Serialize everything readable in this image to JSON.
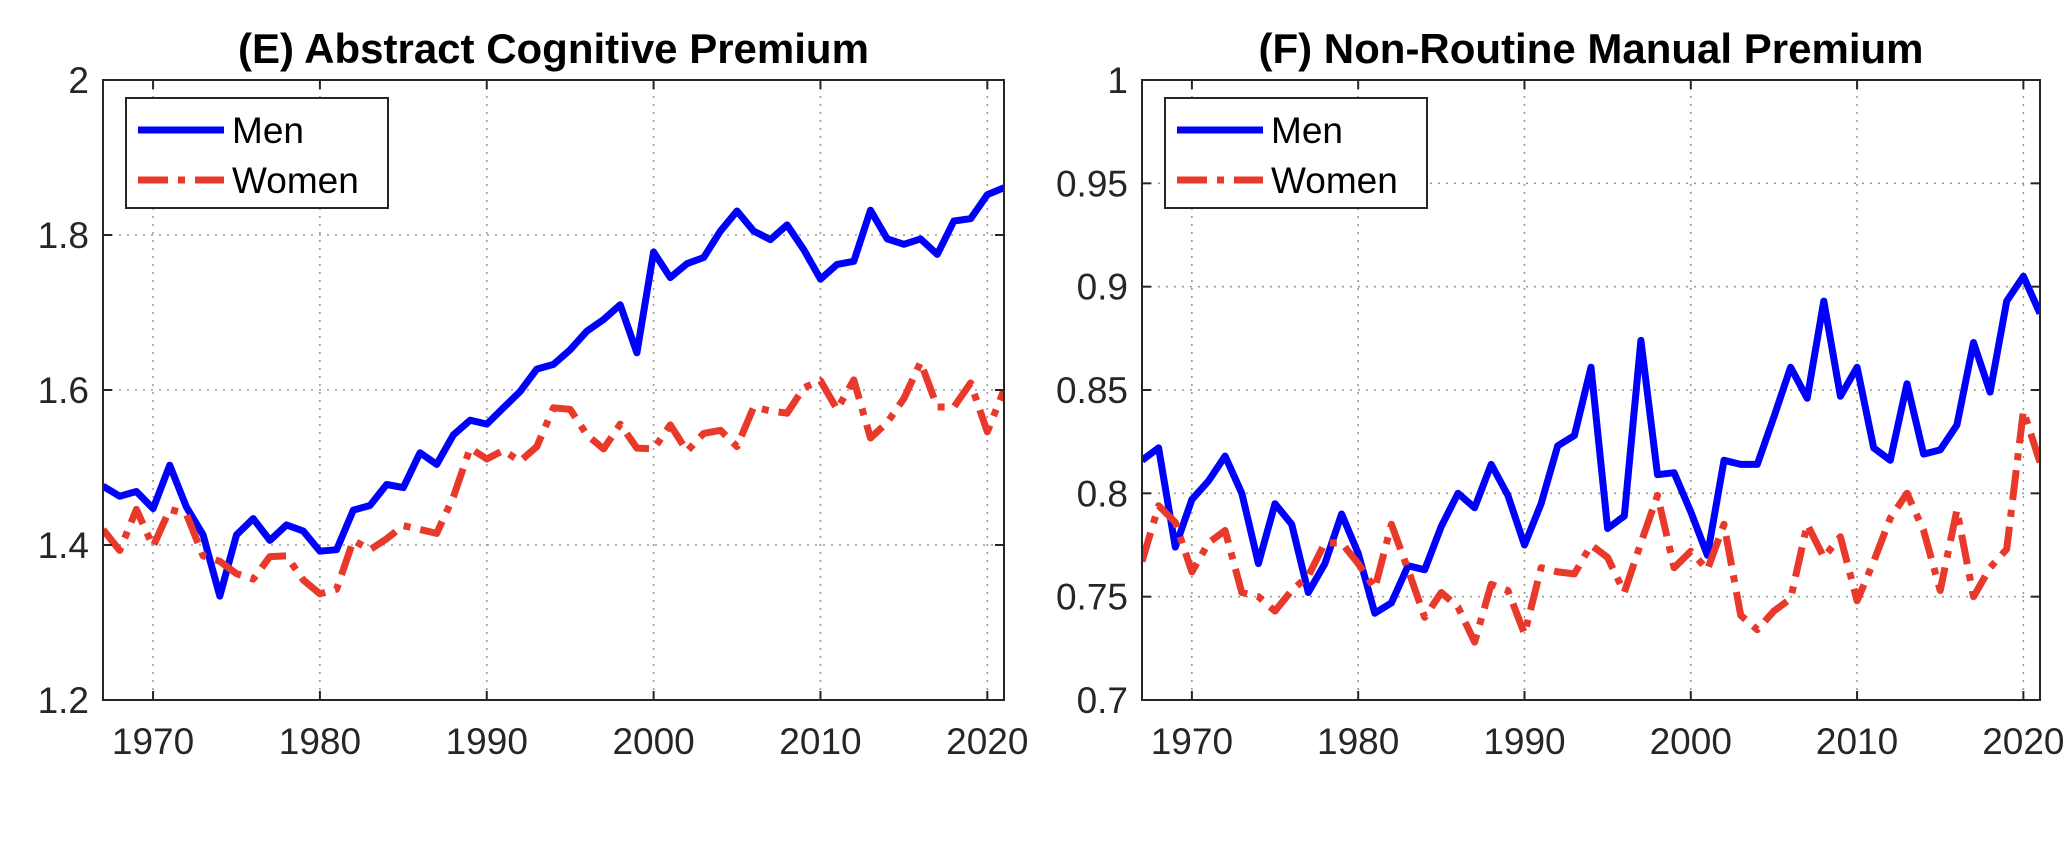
{
  "chart_data": [
    {
      "type": "line",
      "title": "(E) Abstract Cognitive Premium",
      "xlabel": "",
      "ylabel": "",
      "xlim": [
        1967,
        2021
      ],
      "ylim": [
        1.2,
        2.0
      ],
      "xticks": [
        1970,
        1980,
        1990,
        2000,
        2010,
        2020
      ],
      "xtick_labels": [
        "1970",
        "1980",
        "1990",
        "2000",
        "2010",
        "2020"
      ],
      "yticks": [
        1.2,
        1.4,
        1.6,
        1.8,
        2.0
      ],
      "ytick_labels": [
        "1.2",
        "1.4",
        "1.6",
        "1.8",
        "2"
      ],
      "grid": true,
      "legend_position": "top-left",
      "x": [
        1967,
        1968,
        1969,
        1970,
        1971,
        1972,
        1973,
        1974,
        1975,
        1976,
        1977,
        1978,
        1979,
        1980,
        1981,
        1982,
        1983,
        1984,
        1985,
        1986,
        1987,
        1988,
        1989,
        1990,
        1991,
        1992,
        1993,
        1994,
        1995,
        1996,
        1997,
        1998,
        1999,
        2000,
        2001,
        2002,
        2003,
        2004,
        2005,
        2006,
        2007,
        2008,
        2009,
        2010,
        2011,
        2012,
        2013,
        2014,
        2015,
        2016,
        2017,
        2018,
        2019,
        2020,
        2021
      ],
      "series": [
        {
          "name": "Men",
          "color": "#0000ff",
          "style": "solid",
          "values": [
            1.476,
            1.463,
            1.469,
            1.447,
            1.503,
            1.449,
            1.413,
            1.334,
            1.413,
            1.434,
            1.406,
            1.426,
            1.418,
            1.392,
            1.394,
            1.445,
            1.451,
            1.478,
            1.474,
            1.519,
            1.504,
            1.542,
            1.561,
            1.556,
            1.577,
            1.598,
            1.627,
            1.633,
            1.652,
            1.676,
            1.691,
            1.71,
            1.648,
            1.778,
            1.745,
            1.763,
            1.771,
            1.805,
            1.831,
            1.805,
            1.794,
            1.813,
            1.781,
            1.743,
            1.762,
            1.766,
            1.832,
            1.795,
            1.788,
            1.795,
            1.775,
            1.818,
            1.821,
            1.852,
            1.861
          ]
        },
        {
          "name": "Women",
          "color": "#e8392b",
          "style": "dashdot",
          "values": [
            1.42,
            1.393,
            1.446,
            1.398,
            1.446,
            1.44,
            1.386,
            1.379,
            1.363,
            1.356,
            1.385,
            1.386,
            1.355,
            1.337,
            1.343,
            1.406,
            1.394,
            1.408,
            1.425,
            1.42,
            1.415,
            1.462,
            1.525,
            1.511,
            1.522,
            1.508,
            1.527,
            1.577,
            1.575,
            1.542,
            1.524,
            1.556,
            1.525,
            1.524,
            1.555,
            1.521,
            1.544,
            1.548,
            1.527,
            1.578,
            1.573,
            1.57,
            1.603,
            1.612,
            1.575,
            1.613,
            1.538,
            1.558,
            1.589,
            1.636,
            1.578,
            1.578,
            1.609,
            1.546,
            1.6
          ]
        }
      ]
    },
    {
      "type": "line",
      "title": "(F) Non-Routine Manual Premium",
      "xlabel": "",
      "ylabel": "",
      "xlim": [
        1967,
        2021
      ],
      "ylim": [
        0.7,
        1.0
      ],
      "xticks": [
        1970,
        1980,
        1990,
        2000,
        2010,
        2020
      ],
      "xtick_labels": [
        "1970",
        "1980",
        "1990",
        "2000",
        "2010",
        "2020"
      ],
      "yticks": [
        0.7,
        0.75,
        0.8,
        0.85,
        0.9,
        0.95,
        1.0
      ],
      "ytick_labels": [
        "0.7",
        "0.75",
        "0.8",
        "0.85",
        "0.9",
        "0.95",
        "1"
      ],
      "grid": true,
      "legend_position": "top-left",
      "x": [
        1967,
        1968,
        1969,
        1970,
        1971,
        1972,
        1973,
        1974,
        1975,
        1976,
        1977,
        1978,
        1979,
        1980,
        1981,
        1982,
        1983,
        1984,
        1985,
        1986,
        1987,
        1988,
        1989,
        1990,
        1991,
        1992,
        1993,
        1994,
        1995,
        1996,
        1997,
        1998,
        1999,
        2000,
        2001,
        2002,
        2003,
        2004,
        2005,
        2006,
        2007,
        2008,
        2009,
        2010,
        2011,
        2012,
        2013,
        2014,
        2015,
        2016,
        2017,
        2018,
        2019,
        2020,
        2021
      ],
      "series": [
        {
          "name": "Men",
          "color": "#0000ff",
          "style": "solid",
          "values": [
            0.816,
            0.822,
            0.774,
            0.797,
            0.806,
            0.818,
            0.8,
            0.766,
            0.795,
            0.785,
            0.752,
            0.766,
            0.79,
            0.771,
            0.742,
            0.747,
            0.765,
            0.763,
            0.784,
            0.8,
            0.793,
            0.814,
            0.799,
            0.775,
            0.795,
            0.823,
            0.828,
            0.861,
            0.783,
            0.789,
            0.874,
            0.809,
            0.81,
            0.791,
            0.77,
            0.816,
            0.814,
            0.814,
            0.837,
            0.861,
            0.846,
            0.893,
            0.847,
            0.861,
            0.822,
            0.816,
            0.853,
            0.819,
            0.821,
            0.833,
            0.873,
            0.849,
            0.893,
            0.905,
            0.887
          ]
        },
        {
          "name": "Women",
          "color": "#e8392b",
          "style": "dashdot",
          "values": [
            0.767,
            0.794,
            0.786,
            0.762,
            0.776,
            0.782,
            0.752,
            0.75,
            0.743,
            0.753,
            0.76,
            0.776,
            0.776,
            0.766,
            0.754,
            0.785,
            0.763,
            0.74,
            0.752,
            0.745,
            0.728,
            0.756,
            0.753,
            0.732,
            0.764,
            0.762,
            0.761,
            0.775,
            0.769,
            0.752,
            0.776,
            0.799,
            0.764,
            0.772,
            0.763,
            0.785,
            0.741,
            0.734,
            0.743,
            0.749,
            0.785,
            0.769,
            0.779,
            0.748,
            0.767,
            0.788,
            0.8,
            0.782,
            0.753,
            0.792,
            0.75,
            0.764,
            0.773,
            0.84,
            0.815
          ]
        }
      ]
    }
  ]
}
